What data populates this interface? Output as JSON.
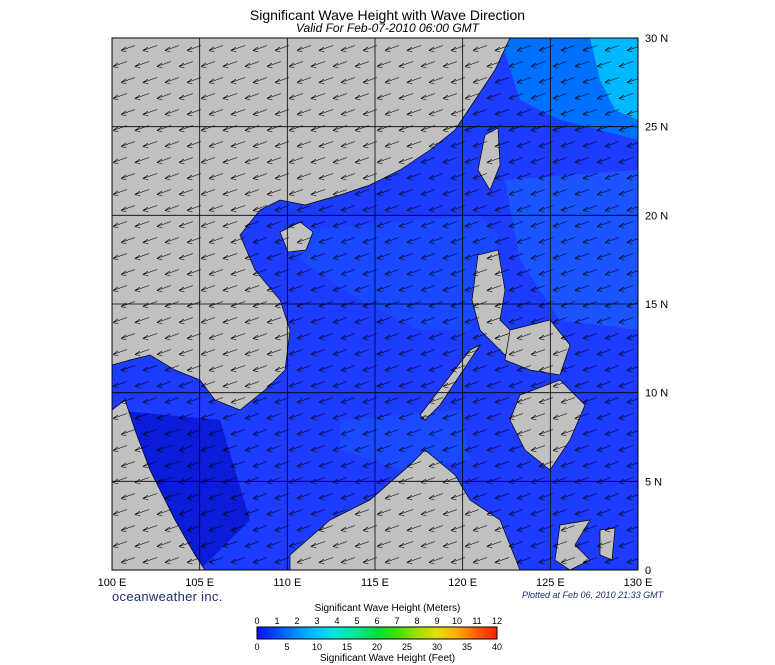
{
  "title": "Significant Wave Height with Wave Direction",
  "subtitle": "Valid For Feb-07-2010 06:00 GMT",
  "brand": "oceanweather inc.",
  "plotted_note": "Plotted at Feb 06, 2010 21:33 GMT",
  "map": {
    "lon_range": [
      100,
      130
    ],
    "lat_range": [
      0,
      30
    ],
    "lon_labels": [
      "100 E",
      "105 E",
      "110 E",
      "115 E",
      "120 E",
      "125 E",
      "130 E"
    ],
    "lat_labels": [
      "0",
      "5 N",
      "10 N",
      "15 N",
      "20 N",
      "25 N",
      "30 N"
    ],
    "land_color": "#c0c0c0",
    "ocean_color": "#1e3cff",
    "wave_direction": "northeast to southwest"
  },
  "colorbar": {
    "title_meters": "Significant Wave Height (Meters)",
    "title_feet": "Significant Wave Height (Feet)",
    "meter_ticks": [
      "0",
      "1",
      "2",
      "3",
      "4",
      "5",
      "6",
      "7",
      "8",
      "9",
      "10",
      "11",
      "12"
    ],
    "feet_ticks": [
      "0",
      "5",
      "10",
      "15",
      "20",
      "25",
      "30",
      "35",
      "40"
    ],
    "colors": [
      "#1010ff",
      "#0050ff",
      "#0090ff",
      "#00c8ff",
      "#00e8d0",
      "#00e890",
      "#00e040",
      "#40e000",
      "#a0e000",
      "#e0e000",
      "#ffb000",
      "#ff6000",
      "#ff2000"
    ]
  }
}
